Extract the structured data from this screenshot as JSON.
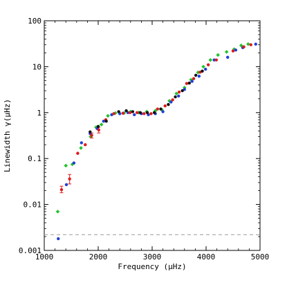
{
  "chart_data": {
    "type": "scatter",
    "xlabel": "Frequency (μHz)",
    "ylabel": "Linewidth γ(μHz)",
    "xlim": [
      1000,
      5000
    ],
    "ylim": [
      0.001,
      100
    ],
    "yscale": "log",
    "grid": false,
    "legend": "none",
    "x_ticks": [
      1000,
      2000,
      3000,
      4000,
      5000
    ],
    "x_tick_labels": [
      "1000",
      "2000",
      "3000",
      "4000",
      "5000"
    ],
    "y_ticks": [
      0.001,
      0.01,
      0.1,
      1,
      10,
      100
    ],
    "y_tick_labels": [
      "0.001",
      "0.01",
      "0.1",
      "1",
      "10",
      "100"
    ],
    "reference_line": {
      "y": 0.0022,
      "style": "dashed",
      "color": "#999999"
    },
    "series": [
      {
        "color": "#22c32c",
        "marker": "diamond",
        "points": [
          [
            1250,
            0.007
          ],
          [
            1400,
            0.07
          ],
          [
            1520,
            0.075
          ],
          [
            1680,
            0.17
          ],
          [
            1860,
            0.3
          ],
          [
            1960,
            0.48
          ],
          [
            2060,
            0.55
          ],
          [
            2180,
            0.85
          ],
          [
            2320,
            0.98
          ],
          [
            2480,
            0.98
          ],
          [
            2600,
            1.05
          ],
          [
            2750,
            1.0
          ],
          [
            2900,
            1.05
          ],
          [
            3060,
            1.1
          ],
          [
            3180,
            1.15
          ],
          [
            3320,
            1.8
          ],
          [
            3450,
            2.6
          ],
          [
            3600,
            3.5
          ],
          [
            3720,
            5.2
          ],
          [
            3850,
            7.5
          ],
          [
            3950,
            10.0
          ],
          [
            4080,
            14.0
          ],
          [
            4220,
            18.0
          ],
          [
            4380,
            21.0
          ],
          [
            4520,
            24.0
          ],
          [
            4650,
            29.0
          ],
          [
            4780,
            31.0
          ]
        ]
      },
      {
        "color": "#1f3fd9",
        "marker": "circle",
        "points": [
          [
            1260,
            0.0018
          ],
          [
            1410,
            0.027
          ],
          [
            1550,
            0.08
          ],
          [
            1690,
            0.22
          ],
          [
            1850,
            0.35
          ],
          [
            1980,
            0.45
          ],
          [
            2100,
            0.65
          ],
          [
            2250,
            0.9
          ],
          [
            2400,
            0.95
          ],
          [
            2550,
            1.0
          ],
          [
            2670,
            0.9
          ],
          [
            2800,
            0.95
          ],
          [
            2930,
            0.9
          ],
          [
            3060,
            0.95
          ],
          [
            3200,
            1.05
          ],
          [
            3350,
            1.7
          ],
          [
            3490,
            2.3
          ],
          [
            3600,
            3.2
          ],
          [
            3740,
            4.8
          ],
          [
            3870,
            6.2
          ],
          [
            3990,
            8.8
          ],
          [
            4150,
            14.0
          ],
          [
            4400,
            16.0
          ],
          [
            4550,
            23.0
          ],
          [
            4680,
            26.0
          ],
          [
            4920,
            31.0
          ]
        ]
      },
      {
        "color": "#e01b1b",
        "marker": "circle",
        "points": [
          [
            1320,
            0.021
          ],
          [
            1470,
            0.036
          ],
          [
            1620,
            0.13
          ],
          [
            1760,
            0.2
          ],
          [
            1880,
            0.32
          ],
          [
            2010,
            0.42
          ],
          [
            2140,
            0.7
          ],
          [
            2290,
            0.95
          ],
          [
            2460,
            0.97
          ],
          [
            2590,
            1.0
          ],
          [
            2720,
            1.0
          ],
          [
            2850,
            0.95
          ],
          [
            2980,
            0.95
          ],
          [
            3100,
            1.2
          ],
          [
            3240,
            1.4
          ],
          [
            3380,
            1.9
          ],
          [
            3500,
            2.8
          ],
          [
            3640,
            4.3
          ],
          [
            3770,
            5.5
          ],
          [
            3890,
            7.6
          ],
          [
            4040,
            11.0
          ],
          [
            4190,
            14.0
          ],
          [
            4500,
            22.0
          ],
          [
            4700,
            27.0
          ],
          [
            4830,
            30.0
          ]
        ],
        "errors": [
          [
            1320,
            0.018,
            0.025
          ],
          [
            1470,
            0.028,
            0.045
          ],
          [
            1880,
            0.28,
            0.36
          ],
          [
            2010,
            0.36,
            0.48
          ]
        ]
      },
      {
        "color": "#111111",
        "marker": "circle",
        "points": [
          [
            1850,
            0.38
          ],
          [
            2000,
            0.5
          ],
          [
            2150,
            0.65
          ],
          [
            2380,
            1.05
          ],
          [
            2520,
            1.1
          ],
          [
            2640,
            1.05
          ],
          [
            2780,
            1.0
          ],
          [
            2910,
            1.0
          ],
          [
            3040,
            1.0
          ],
          [
            3160,
            1.2
          ],
          [
            3300,
            1.5
          ],
          [
            3430,
            2.2
          ],
          [
            3560,
            3.0
          ],
          [
            3690,
            4.4
          ],
          [
            3810,
            6.5
          ],
          [
            3930,
            8.0
          ]
        ]
      }
    ]
  }
}
